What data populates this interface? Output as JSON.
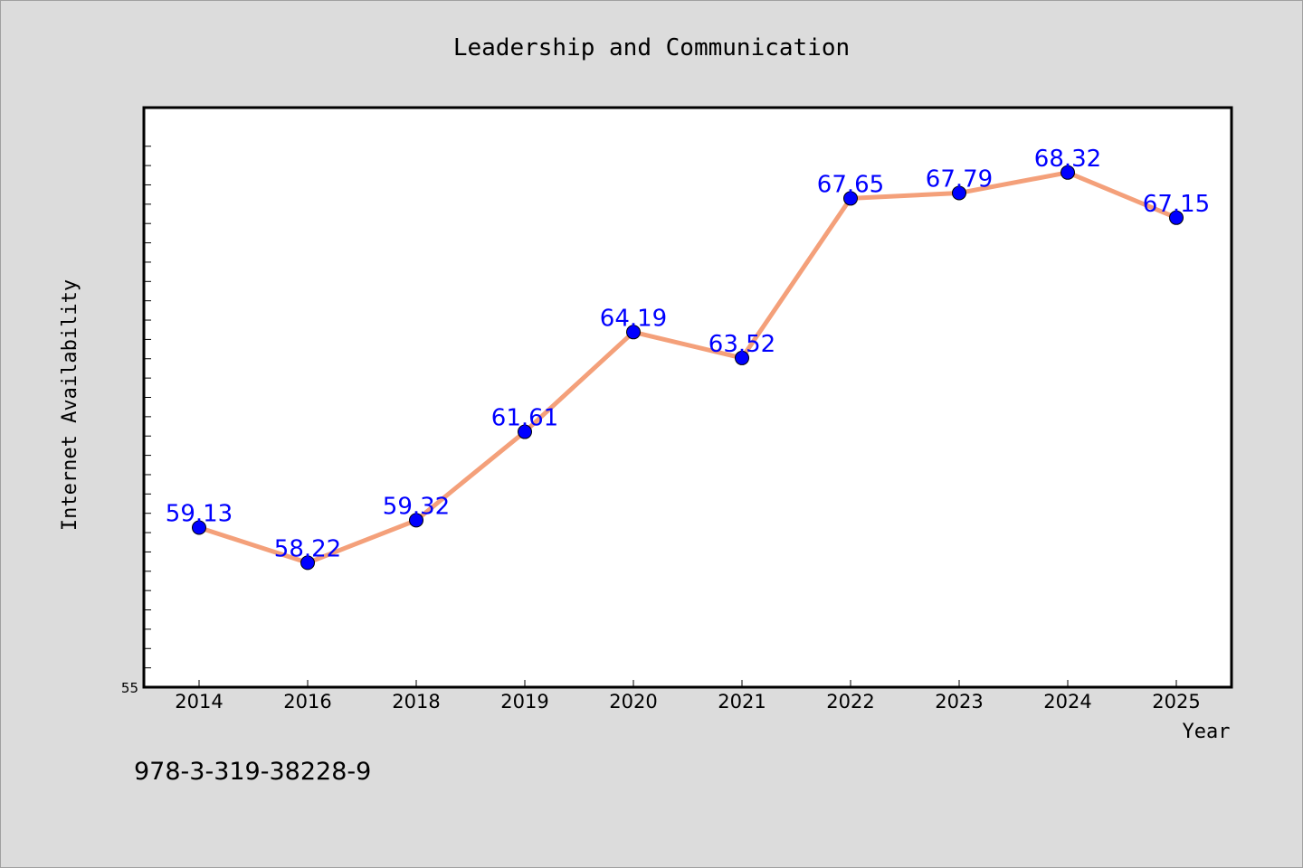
{
  "chart_data": {
    "type": "line",
    "title": "Leadership and Communication",
    "xlabel": "Year",
    "ylabel": "Internet Availability",
    "categories": [
      "2014",
      "2016",
      "2018",
      "2019",
      "2020",
      "2021",
      "2022",
      "2023",
      "2024",
      "2025"
    ],
    "series": [
      {
        "values": [
          59.13,
          58.22,
          59.32,
          61.61,
          64.19,
          63.52,
          67.65,
          67.79,
          68.32,
          67.15
        ],
        "data_labels": [
          "59.13",
          "58.22",
          "59.32",
          "61.61",
          "64.19",
          "63.52",
          "67.65",
          "67.79",
          "68.32",
          "67.15"
        ],
        "line_color": "#f4a07a",
        "marker_color": "#0000ff"
      }
    ],
    "ylim": [
      55,
      70
    ],
    "yticks_labeled": [
      "55"
    ],
    "grid": false,
    "legend": "none"
  },
  "footer": {
    "isbn": "978-3-319-38228-9"
  }
}
